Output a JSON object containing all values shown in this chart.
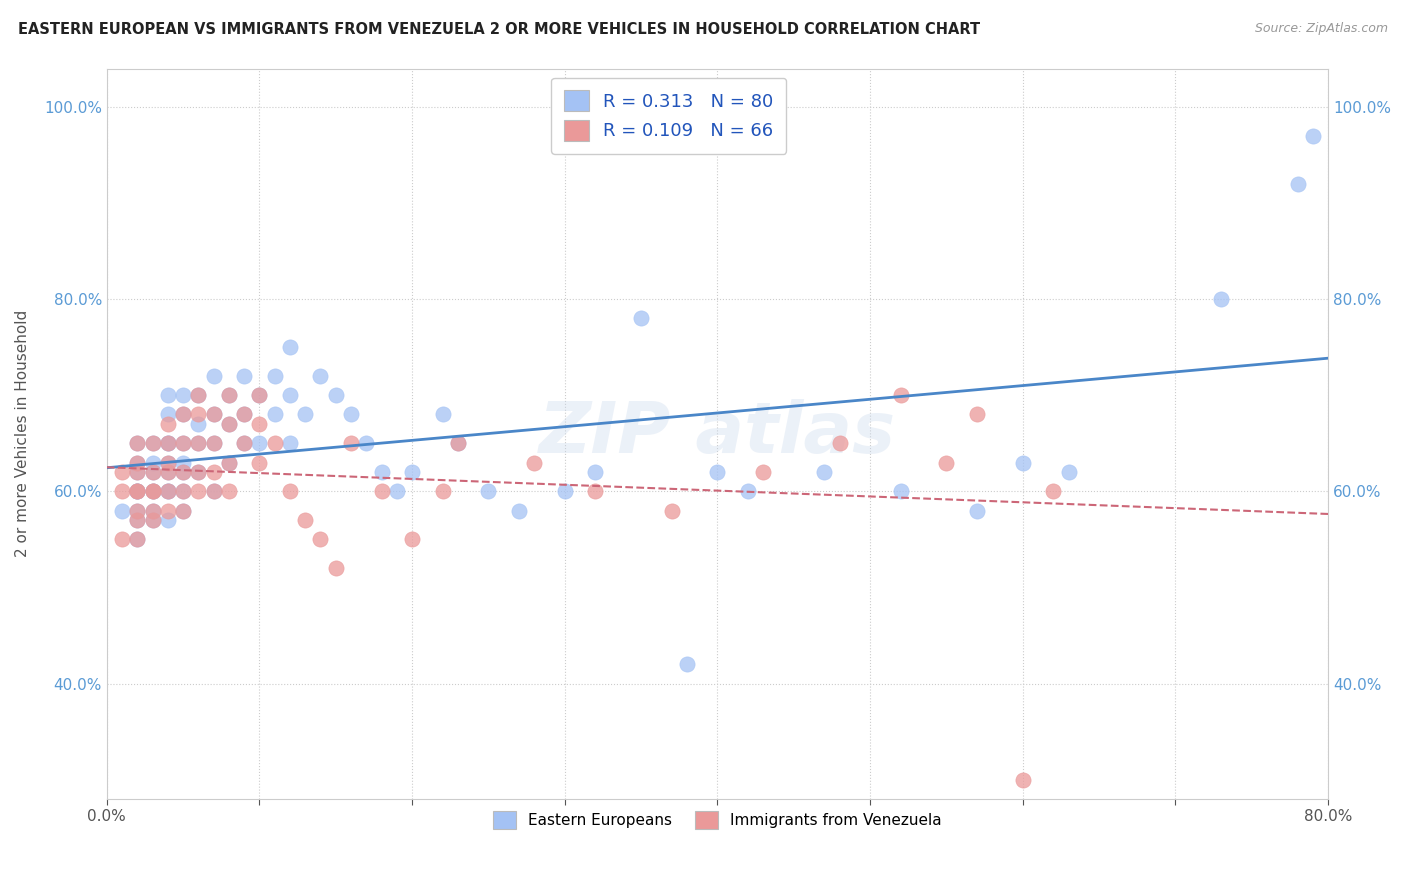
{
  "title": "EASTERN EUROPEAN VS IMMIGRANTS FROM VENEZUELA 2 OR MORE VEHICLES IN HOUSEHOLD CORRELATION CHART",
  "source": "Source: ZipAtlas.com",
  "ylabel": "2 or more Vehicles in Household",
  "xlim": [
    0.0,
    0.8
  ],
  "ylim": [
    0.28,
    1.04
  ],
  "xticks": [
    0.0,
    0.1,
    0.2,
    0.3,
    0.4,
    0.5,
    0.6,
    0.7,
    0.8
  ],
  "xticklabels": [
    "0.0%",
    "",
    "",
    "",
    "",
    "",
    "",
    "",
    "80.0%"
  ],
  "yticks": [
    0.4,
    0.6,
    0.8,
    1.0
  ],
  "yticklabels": [
    "40.0%",
    "60.0%",
    "80.0%",
    "100.0%"
  ],
  "blue_R": 0.313,
  "blue_N": 80,
  "pink_R": 0.109,
  "pink_N": 66,
  "blue_color": "#a4c2f4",
  "pink_color": "#ea9999",
  "blue_line_color": "#4a86c8",
  "pink_line_color": "#cc6677",
  "blue_scatter_x": [
    0.01,
    0.02,
    0.02,
    0.02,
    0.02,
    0.02,
    0.02,
    0.02,
    0.02,
    0.02,
    0.03,
    0.03,
    0.03,
    0.03,
    0.03,
    0.03,
    0.03,
    0.04,
    0.04,
    0.04,
    0.04,
    0.04,
    0.04,
    0.04,
    0.04,
    0.04,
    0.05,
    0.05,
    0.05,
    0.05,
    0.05,
    0.05,
    0.05,
    0.06,
    0.06,
    0.06,
    0.06,
    0.07,
    0.07,
    0.07,
    0.07,
    0.08,
    0.08,
    0.08,
    0.09,
    0.09,
    0.09,
    0.1,
    0.1,
    0.11,
    0.11,
    0.12,
    0.12,
    0.12,
    0.13,
    0.14,
    0.15,
    0.16,
    0.17,
    0.18,
    0.19,
    0.2,
    0.22,
    0.23,
    0.25,
    0.27,
    0.3,
    0.32,
    0.35,
    0.38,
    0.4,
    0.42,
    0.47,
    0.52,
    0.57,
    0.6,
    0.63,
    0.73,
    0.78,
    0.79
  ],
  "blue_scatter_y": [
    0.58,
    0.6,
    0.62,
    0.65,
    0.57,
    0.6,
    0.55,
    0.58,
    0.63,
    0.6,
    0.63,
    0.65,
    0.6,
    0.62,
    0.58,
    0.6,
    0.57,
    0.65,
    0.68,
    0.7,
    0.62,
    0.65,
    0.6,
    0.57,
    0.63,
    0.6,
    0.68,
    0.7,
    0.65,
    0.62,
    0.6,
    0.63,
    0.58,
    0.7,
    0.67,
    0.65,
    0.62,
    0.68,
    0.72,
    0.65,
    0.6,
    0.7,
    0.67,
    0.63,
    0.72,
    0.68,
    0.65,
    0.7,
    0.65,
    0.72,
    0.68,
    0.75,
    0.7,
    0.65,
    0.68,
    0.72,
    0.7,
    0.68,
    0.65,
    0.62,
    0.6,
    0.62,
    0.68,
    0.65,
    0.6,
    0.58,
    0.6,
    0.62,
    0.78,
    0.42,
    0.62,
    0.6,
    0.62,
    0.6,
    0.58,
    0.63,
    0.62,
    0.8,
    0.92,
    0.97
  ],
  "pink_scatter_x": [
    0.01,
    0.01,
    0.01,
    0.02,
    0.02,
    0.02,
    0.02,
    0.02,
    0.02,
    0.02,
    0.02,
    0.03,
    0.03,
    0.03,
    0.03,
    0.03,
    0.03,
    0.04,
    0.04,
    0.04,
    0.04,
    0.04,
    0.04,
    0.05,
    0.05,
    0.05,
    0.05,
    0.05,
    0.06,
    0.06,
    0.06,
    0.06,
    0.06,
    0.07,
    0.07,
    0.07,
    0.07,
    0.08,
    0.08,
    0.08,
    0.08,
    0.09,
    0.09,
    0.1,
    0.1,
    0.1,
    0.11,
    0.12,
    0.13,
    0.14,
    0.15,
    0.16,
    0.18,
    0.2,
    0.22,
    0.23,
    0.28,
    0.32,
    0.37,
    0.43,
    0.48,
    0.52,
    0.55,
    0.57,
    0.6,
    0.62
  ],
  "pink_scatter_y": [
    0.6,
    0.55,
    0.62,
    0.65,
    0.6,
    0.57,
    0.62,
    0.63,
    0.55,
    0.6,
    0.58,
    0.62,
    0.6,
    0.57,
    0.65,
    0.6,
    0.58,
    0.65,
    0.63,
    0.6,
    0.58,
    0.62,
    0.67,
    0.65,
    0.68,
    0.62,
    0.6,
    0.58,
    0.68,
    0.65,
    0.62,
    0.7,
    0.6,
    0.68,
    0.65,
    0.62,
    0.6,
    0.7,
    0.67,
    0.63,
    0.6,
    0.68,
    0.65,
    0.7,
    0.67,
    0.63,
    0.65,
    0.6,
    0.57,
    0.55,
    0.52,
    0.65,
    0.6,
    0.55,
    0.6,
    0.65,
    0.63,
    0.6,
    0.58,
    0.62,
    0.65,
    0.7,
    0.63,
    0.68,
    0.3,
    0.6
  ]
}
